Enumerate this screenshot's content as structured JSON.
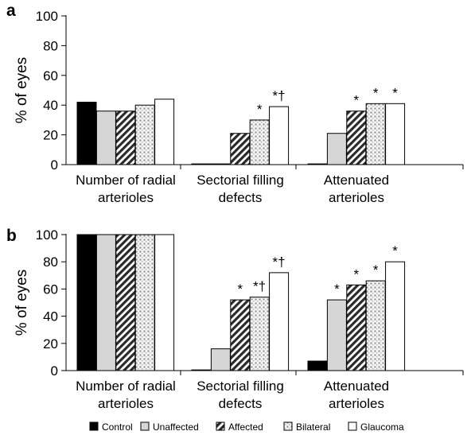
{
  "legend": {
    "position": "bottom",
    "items": [
      {
        "label": "Control",
        "pattern": "solid-black"
      },
      {
        "label": "Unaffected",
        "pattern": "solid-lightgray"
      },
      {
        "label": "Affected",
        "pattern": "diagonal-hatch"
      },
      {
        "label": "Bilateral",
        "pattern": "dots"
      },
      {
        "label": "Glaucoma",
        "pattern": "white"
      }
    ]
  },
  "chart_data": [
    {
      "type": "bar",
      "panel_label": "a",
      "ylabel": "% of eyes",
      "ylim": [
        0,
        100
      ],
      "yticks": [
        0,
        20,
        40,
        60,
        80,
        100
      ],
      "grid": false,
      "categories": [
        [
          "Number of radial",
          "arterioles"
        ],
        [
          "Sectorial filling",
          "defects"
        ],
        [
          "Attenuated",
          "arterioles"
        ]
      ],
      "series": [
        {
          "name": "Control",
          "values": [
            42,
            0.5,
            0.5
          ]
        },
        {
          "name": "Unaffected",
          "values": [
            36,
            0.5,
            21
          ]
        },
        {
          "name": "Affected",
          "values": [
            36,
            21,
            36
          ]
        },
        {
          "name": "Bilateral",
          "values": [
            40,
            30,
            41
          ]
        },
        {
          "name": "Glaucoma",
          "values": [
            44,
            39,
            41
          ]
        }
      ],
      "annotations": [
        {
          "category": 1,
          "series": 3,
          "text": "*"
        },
        {
          "category": 1,
          "series": 4,
          "text": "*†"
        },
        {
          "category": 2,
          "series": 2,
          "text": "*"
        },
        {
          "category": 2,
          "series": 3,
          "text": "*"
        },
        {
          "category": 2,
          "series": 4,
          "text": "*"
        }
      ]
    },
    {
      "type": "bar",
      "panel_label": "b",
      "ylabel": "% of eyes",
      "ylim": [
        0,
        100
      ],
      "yticks": [
        0,
        20,
        40,
        60,
        80,
        100
      ],
      "grid": false,
      "categories": [
        [
          "Number of radial",
          "arterioles"
        ],
        [
          "Sectorial filling",
          "defects"
        ],
        [
          "Attenuated",
          "arterioles"
        ]
      ],
      "series": [
        {
          "name": "Control",
          "values": [
            100,
            0.5,
            7
          ]
        },
        {
          "name": "Unaffected",
          "values": [
            100,
            16,
            52
          ]
        },
        {
          "name": "Affected",
          "values": [
            100,
            52,
            63
          ]
        },
        {
          "name": "Bilateral",
          "values": [
            100,
            54,
            66
          ]
        },
        {
          "name": "Glaucoma",
          "values": [
            100,
            72,
            80
          ]
        }
      ],
      "annotations": [
        {
          "category": 1,
          "series": 2,
          "text": "*"
        },
        {
          "category": 1,
          "series": 3,
          "text": "*†"
        },
        {
          "category": 1,
          "series": 4,
          "text": "*†"
        },
        {
          "category": 2,
          "series": 1,
          "text": "*"
        },
        {
          "category": 2,
          "series": 2,
          "text": "*"
        },
        {
          "category": 2,
          "series": 3,
          "text": "*"
        },
        {
          "category": 2,
          "series": 4,
          "text": "*"
        }
      ]
    }
  ]
}
